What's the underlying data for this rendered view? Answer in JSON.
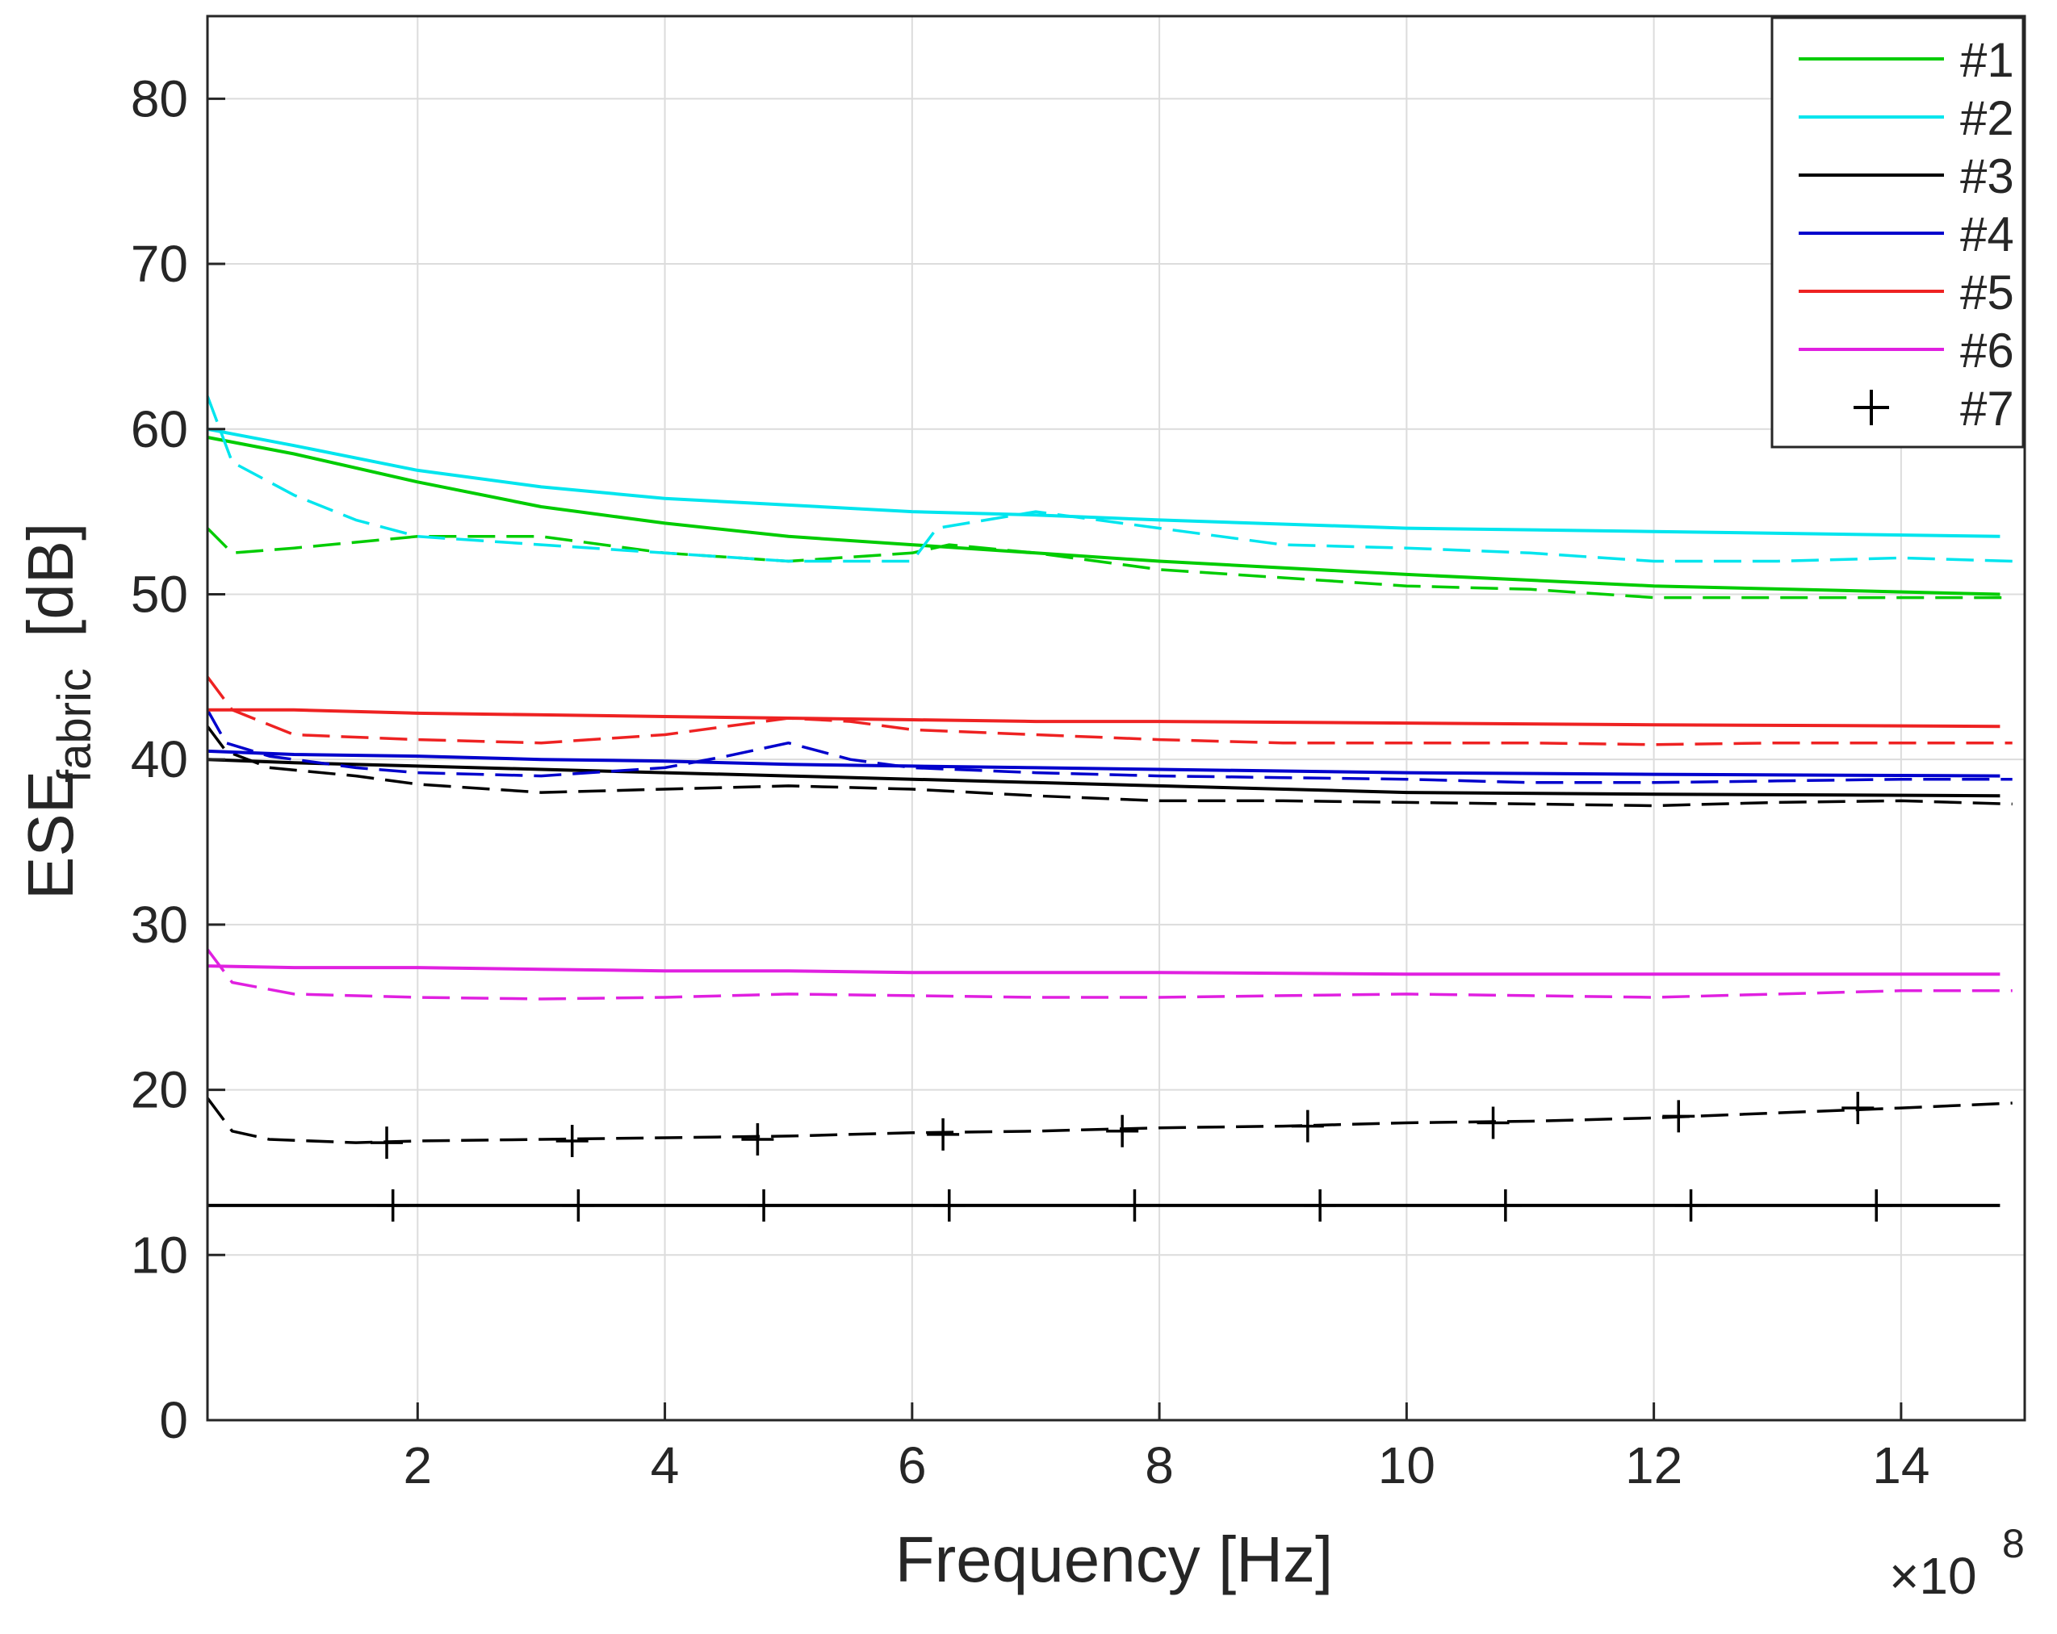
{
  "chart_data": {
    "type": "line",
    "title": "",
    "xlabel": "Frequency [Hz]",
    "ylabel_main": "ESE",
    "ylabel_sub": "fabric",
    "ylabel_unit": "[dB]",
    "x_exponent_prefix": "×10",
    "x_exponent": "8",
    "xlim": [
      0.3,
      15
    ],
    "ylim": [
      0,
      85
    ],
    "grid": true,
    "legend_position": "top-right",
    "x_ticks": [
      2,
      4,
      6,
      8,
      10,
      12,
      14
    ],
    "y_ticks": [
      0,
      10,
      20,
      30,
      40,
      50,
      60,
      70,
      80
    ],
    "series": [
      {
        "name": "#1",
        "color": "#00cc00",
        "smooth": {
          "x": [
            0.3,
            1,
            2,
            3,
            4,
            5,
            6,
            7,
            8,
            10,
            12,
            14.8
          ],
          "y": [
            59.5,
            58.5,
            56.8,
            55.3,
            54.3,
            53.5,
            53.0,
            52.5,
            52.0,
            51.2,
            50.5,
            50.0
          ]
        },
        "measured": {
          "x": [
            0.3,
            0.5,
            1,
            2,
            3,
            4,
            5,
            6,
            6.3,
            7,
            8,
            9,
            10,
            11,
            12,
            13,
            14,
            14.9
          ],
          "y": [
            54,
            52.5,
            52.8,
            53.5,
            53.5,
            52.5,
            52.0,
            52.5,
            53.0,
            52.5,
            51.5,
            51.0,
            50.5,
            50.3,
            49.8,
            49.8,
            49.8,
            49.8
          ]
        }
      },
      {
        "name": "#2",
        "color": "#00e5ee",
        "smooth": {
          "x": [
            0.3,
            1,
            2,
            3,
            4,
            5,
            6,
            7,
            8,
            10,
            12,
            14.8
          ],
          "y": [
            60.0,
            59.0,
            57.5,
            56.5,
            55.8,
            55.4,
            55.0,
            54.8,
            54.5,
            54.0,
            53.8,
            53.5
          ]
        },
        "measured": {
          "x": [
            0.3,
            0.5,
            1,
            1.5,
            2,
            3,
            4,
            5,
            6,
            6.2,
            7,
            8,
            9,
            10,
            11,
            12,
            13,
            14,
            14.9
          ],
          "y": [
            62,
            58,
            56,
            54.5,
            53.5,
            53.0,
            52.5,
            52.0,
            52.0,
            54.0,
            55.0,
            54.0,
            53.0,
            52.8,
            52.5,
            52.0,
            52.0,
            52.2,
            52.0
          ]
        }
      },
      {
        "name": "#3",
        "color": "#000000",
        "smooth": {
          "x": [
            0.3,
            1,
            2,
            3,
            4,
            5,
            6,
            7,
            8,
            10,
            12,
            14.8
          ],
          "y": [
            40.0,
            39.8,
            39.6,
            39.4,
            39.2,
            39.0,
            38.8,
            38.6,
            38.4,
            38.0,
            37.9,
            37.8
          ]
        },
        "measured": {
          "x": [
            0.3,
            0.45,
            0.8,
            1.5,
            2,
            3,
            4,
            5,
            6,
            7,
            8,
            9,
            10,
            11,
            12,
            13,
            14,
            14.9
          ],
          "y": [
            42,
            40.5,
            39.5,
            39.0,
            38.5,
            38.0,
            38.2,
            38.4,
            38.2,
            37.8,
            37.5,
            37.5,
            37.4,
            37.3,
            37.2,
            37.4,
            37.5,
            37.3
          ]
        }
      },
      {
        "name": "#4",
        "color": "#0000cc",
        "smooth": {
          "x": [
            0.3,
            1,
            2,
            3,
            4,
            5,
            6,
            7,
            8,
            10,
            12,
            14.8
          ],
          "y": [
            40.5,
            40.3,
            40.2,
            40.0,
            39.9,
            39.7,
            39.6,
            39.5,
            39.4,
            39.2,
            39.1,
            39.0
          ]
        },
        "measured": {
          "x": [
            0.3,
            0.45,
            0.8,
            1.5,
            2,
            3,
            4,
            4.5,
            5,
            5.5,
            6,
            7,
            8,
            9,
            10,
            11,
            12,
            13,
            14,
            14.9
          ],
          "y": [
            43,
            41,
            40.2,
            39.5,
            39.2,
            39.0,
            39.5,
            40.2,
            41.0,
            40.0,
            39.5,
            39.2,
            39.0,
            38.9,
            38.8,
            38.6,
            38.6,
            38.7,
            38.8,
            38.8
          ]
        }
      },
      {
        "name": "#5",
        "color": "#ee2222",
        "smooth": {
          "x": [
            0.3,
            1,
            2,
            3,
            4,
            5,
            6,
            7,
            8,
            10,
            12,
            14.8
          ],
          "y": [
            43.0,
            43.0,
            42.8,
            42.7,
            42.6,
            42.5,
            42.4,
            42.3,
            42.3,
            42.2,
            42.1,
            42.0
          ]
        },
        "measured": {
          "x": [
            0.3,
            0.5,
            1,
            2,
            3,
            4,
            4.5,
            5,
            5.5,
            6,
            7,
            8,
            9,
            10,
            11,
            12,
            13,
            14,
            14.9
          ],
          "y": [
            45,
            43.0,
            41.5,
            41.2,
            41.0,
            41.5,
            42.0,
            42.5,
            42.3,
            41.8,
            41.5,
            41.2,
            41.0,
            41.0,
            41.0,
            40.9,
            41.0,
            41.0,
            41.0
          ]
        }
      },
      {
        "name": "#6",
        "color": "#e020e0",
        "smooth": {
          "x": [
            0.3,
            1,
            2,
            3,
            4,
            5,
            6,
            7,
            8,
            10,
            12,
            14.8
          ],
          "y": [
            27.5,
            27.4,
            27.4,
            27.3,
            27.2,
            27.2,
            27.1,
            27.1,
            27.1,
            27.0,
            27.0,
            27.0
          ]
        },
        "measured": {
          "x": [
            0.3,
            0.5,
            1,
            2,
            3,
            4,
            5,
            6,
            7,
            8,
            9,
            10,
            11,
            12,
            13,
            14,
            14.9
          ],
          "y": [
            28.5,
            26.5,
            25.8,
            25.6,
            25.5,
            25.6,
            25.8,
            25.7,
            25.6,
            25.6,
            25.7,
            25.8,
            25.7,
            25.6,
            25.8,
            26.0,
            26.0
          ]
        }
      },
      {
        "name": "#7",
        "color": "#000000",
        "smooth": {
          "x": [
            0.3,
            14.8
          ],
          "y": [
            13.0,
            13.0
          ]
        },
        "measured": {
          "x": [
            0.3,
            0.5,
            0.8,
            1.5,
            2,
            3,
            4,
            5,
            6,
            7,
            8,
            9,
            10,
            11,
            12,
            13,
            14,
            14.9
          ],
          "y": [
            19.5,
            17.5,
            17.0,
            16.8,
            16.9,
            17.0,
            17.1,
            17.2,
            17.4,
            17.5,
            17.7,
            17.8,
            18.0,
            18.1,
            18.3,
            18.6,
            18.9,
            19.2
          ]
        },
        "smooth_markers_x": [
          1.8,
          3.3,
          4.8,
          6.3,
          7.8,
          9.3,
          10.8,
          12.3,
          13.8
        ],
        "measured_markers": {
          "x": [
            1.75,
            3.25,
            4.75,
            6.25,
            7.7,
            9.2,
            10.7,
            12.2,
            13.65
          ],
          "y": [
            16.8,
            16.9,
            17.0,
            17.3,
            17.5,
            17.8,
            18.0,
            18.4,
            18.9
          ]
        }
      }
    ]
  }
}
